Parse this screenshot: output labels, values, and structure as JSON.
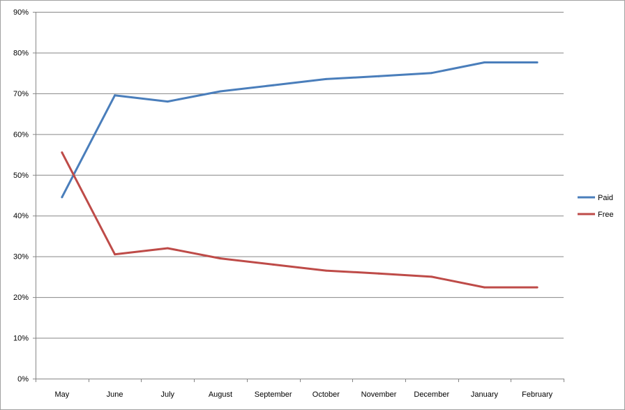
{
  "chart_data": {
    "type": "line",
    "title": "",
    "xlabel": "",
    "ylabel": "",
    "categories": [
      "May",
      "June",
      "July",
      "August",
      "September",
      "October",
      "November",
      "December",
      "January",
      "February"
    ],
    "ylim": [
      0,
      90
    ],
    "yticks": [
      0,
      10,
      20,
      30,
      40,
      50,
      60,
      70,
      80,
      90
    ],
    "ytick_labels": [
      "0%",
      "10%",
      "20%",
      "30%",
      "40%",
      "50%",
      "60%",
      "70%",
      "80%",
      "90%"
    ],
    "grid": "horizontal major gridlines",
    "legend_position": "right",
    "series": [
      {
        "name": "Paid",
        "color": "#4a7ebb",
        "values": [
          44.5,
          69.5,
          68,
          70.5,
          72,
          73.5,
          74.2,
          75,
          77.6,
          77.6
        ]
      },
      {
        "name": "Free",
        "color": "#be4b48",
        "values": [
          55.5,
          30.5,
          32,
          29.5,
          28,
          26.5,
          25.8,
          25,
          22.4,
          22.4
        ]
      }
    ]
  }
}
